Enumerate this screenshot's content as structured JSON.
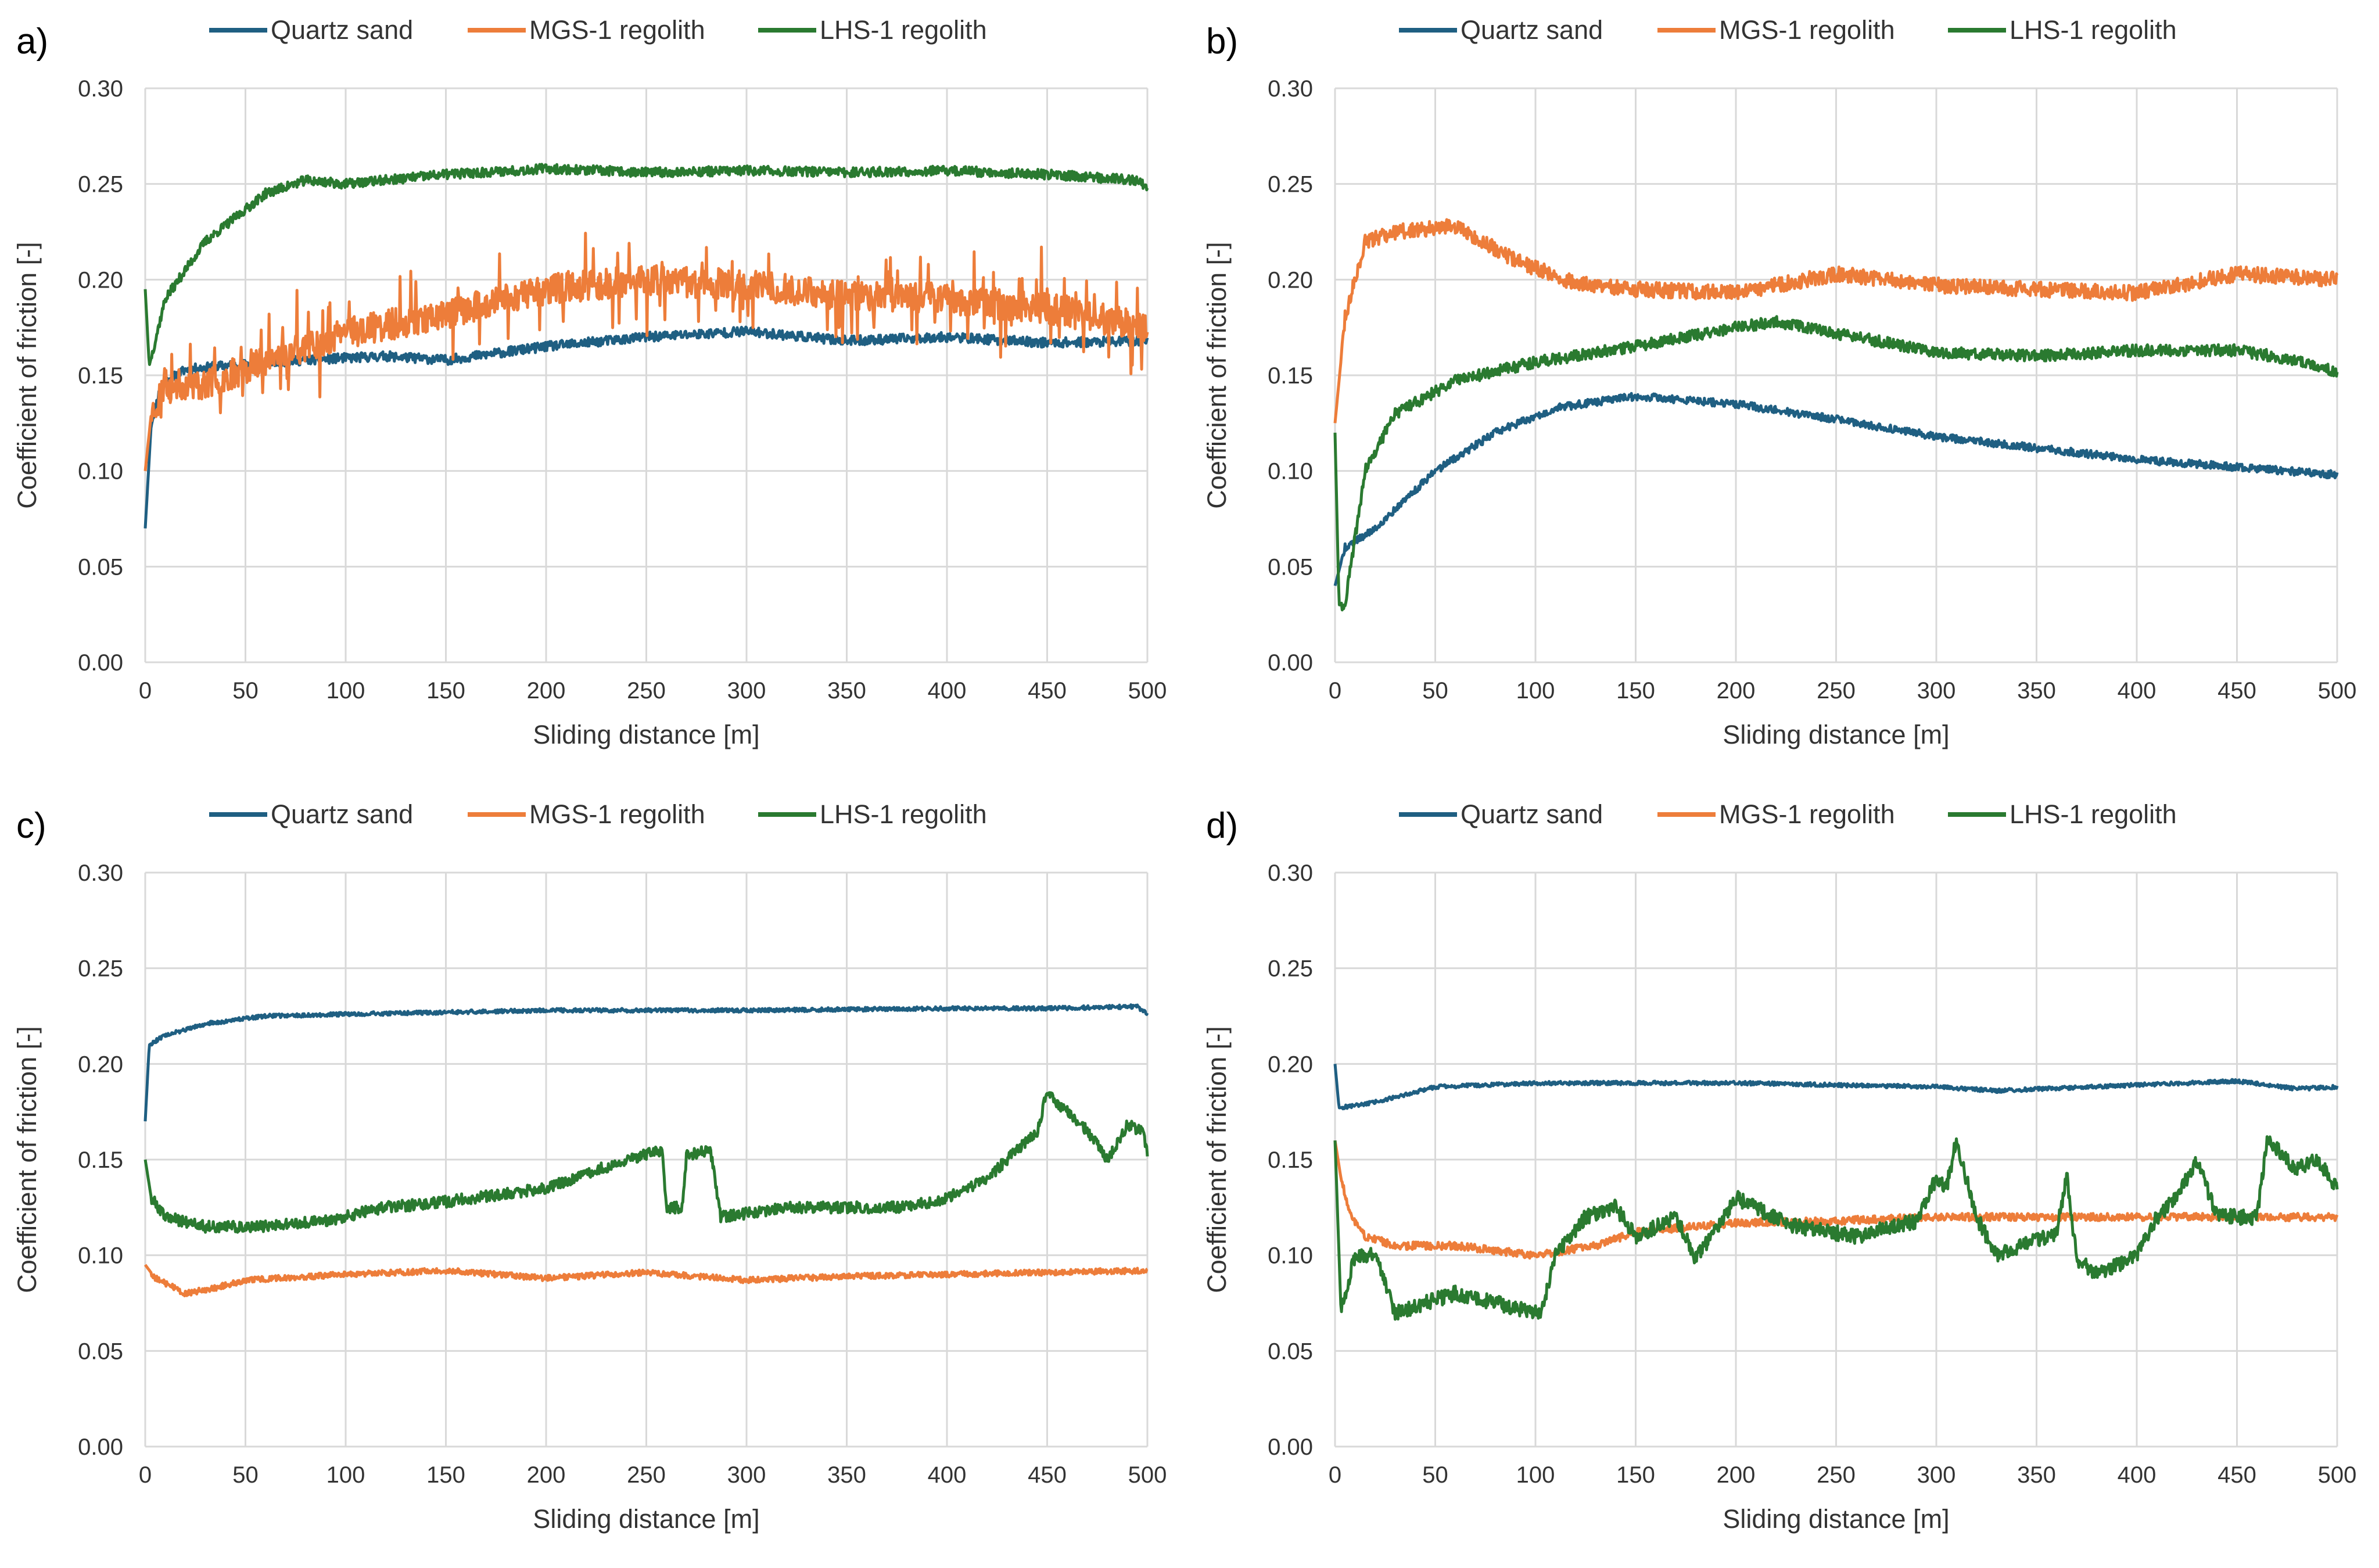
{
  "colors": {
    "quartz": "#1f5f82",
    "mgs": "#ed7d3a",
    "lhs": "#2a7a30",
    "grid": "#d9d9d9"
  },
  "chart_data": [
    {
      "id": "a",
      "panel_label": "a)",
      "type": "line",
      "xlabel": "Sliding distance [m]",
      "ylabel": "Coefficient of friction [-]",
      "xlim": [
        0,
        500
      ],
      "ylim": [
        0,
        0.3
      ],
      "xticks": [
        "0",
        "50",
        "100",
        "150",
        "200",
        "250",
        "300",
        "350",
        "400",
        "450",
        "500"
      ],
      "yticks": [
        "0.00",
        "0.05",
        "0.10",
        "0.15",
        "0.20",
        "0.25",
        "0.30"
      ],
      "legend": [
        "Quartz sand",
        "MGS-1 regolith",
        "LHS-1 regolith"
      ],
      "series": [
        {
          "name": "Quartz sand",
          "color": "#1f5f82",
          "noise": 0.0025,
          "spikes": 0,
          "seed": 11,
          "points": [
            [
              0,
              0.07
            ],
            [
              3,
              0.125
            ],
            [
              8,
              0.145
            ],
            [
              20,
              0.153
            ],
            [
              40,
              0.155
            ],
            [
              80,
              0.158
            ],
            [
              120,
              0.16
            ],
            [
              150,
              0.158
            ],
            [
              200,
              0.165
            ],
            [
              250,
              0.17
            ],
            [
              300,
              0.173
            ],
            [
              350,
              0.168
            ],
            [
              400,
              0.17
            ],
            [
              450,
              0.167
            ],
            [
              500,
              0.168
            ]
          ]
        },
        {
          "name": "MGS-1 regolith",
          "color": "#ed7d3a",
          "noise": 0.008,
          "spikes": 0.025,
          "seed": 23,
          "points": [
            [
              0,
              0.1
            ],
            [
              3,
              0.13
            ],
            [
              10,
              0.145
            ],
            [
              30,
              0.145
            ],
            [
              60,
              0.158
            ],
            [
              100,
              0.172
            ],
            [
              150,
              0.182
            ],
            [
              200,
              0.195
            ],
            [
              250,
              0.2
            ],
            [
              300,
              0.197
            ],
            [
              350,
              0.192
            ],
            [
              400,
              0.19
            ],
            [
              450,
              0.185
            ],
            [
              500,
              0.175
            ]
          ]
        },
        {
          "name": "LHS-1 regolith",
          "color": "#2a7a30",
          "noise": 0.0025,
          "spikes": 0,
          "seed": 37,
          "points": [
            [
              0,
              0.195
            ],
            [
              2,
              0.155
            ],
            [
              10,
              0.19
            ],
            [
              30,
              0.22
            ],
            [
              60,
              0.245
            ],
            [
              80,
              0.252
            ],
            [
              100,
              0.25
            ],
            [
              150,
              0.255
            ],
            [
              200,
              0.258
            ],
            [
              250,
              0.256
            ],
            [
              300,
              0.257
            ],
            [
              350,
              0.256
            ],
            [
              400,
              0.257
            ],
            [
              450,
              0.255
            ],
            [
              495,
              0.252
            ],
            [
              500,
              0.248
            ]
          ]
        }
      ]
    },
    {
      "id": "b",
      "panel_label": "b)",
      "type": "line",
      "xlabel": "Sliding distance [m]",
      "ylabel": "Coefficient of friction [-]",
      "xlim": [
        0,
        500
      ],
      "ylim": [
        0,
        0.3
      ],
      "xticks": [
        "0",
        "50",
        "100",
        "150",
        "200",
        "250",
        "300",
        "350",
        "400",
        "450",
        "500"
      ],
      "yticks": [
        "0.00",
        "0.05",
        "0.10",
        "0.15",
        "0.20",
        "0.25",
        "0.30"
      ],
      "legend": [
        "Quartz sand",
        "MGS-1 regolith",
        "LHS-1 regolith"
      ],
      "series": [
        {
          "name": "Quartz sand",
          "color": "#1f5f82",
          "noise": 0.002,
          "spikes": 0,
          "seed": 41,
          "points": [
            [
              0,
              0.04
            ],
            [
              5,
              0.06
            ],
            [
              20,
              0.07
            ],
            [
              50,
              0.1
            ],
            [
              80,
              0.12
            ],
            [
              110,
              0.133
            ],
            [
              150,
              0.139
            ],
            [
              200,
              0.135
            ],
            [
              250,
              0.127
            ],
            [
              300,
              0.118
            ],
            [
              350,
              0.112
            ],
            [
              400,
              0.106
            ],
            [
              450,
              0.102
            ],
            [
              500,
              0.098
            ]
          ]
        },
        {
          "name": "MGS-1 regolith",
          "color": "#ed7d3a",
          "noise": 0.004,
          "spikes": 0,
          "seed": 53,
          "points": [
            [
              0,
              0.125
            ],
            [
              5,
              0.18
            ],
            [
              15,
              0.22
            ],
            [
              30,
              0.225
            ],
            [
              60,
              0.228
            ],
            [
              90,
              0.21
            ],
            [
              120,
              0.198
            ],
            [
              150,
              0.195
            ],
            [
              200,
              0.193
            ],
            [
              250,
              0.203
            ],
            [
              300,
              0.197
            ],
            [
              350,
              0.195
            ],
            [
              400,
              0.193
            ],
            [
              450,
              0.203
            ],
            [
              500,
              0.2
            ]
          ]
        },
        {
          "name": "LHS-1 regolith",
          "color": "#2a7a30",
          "noise": 0.003,
          "spikes": 0,
          "seed": 67,
          "points": [
            [
              0,
              0.12
            ],
            [
              2,
              0.03
            ],
            [
              5,
              0.03
            ],
            [
              15,
              0.1
            ],
            [
              30,
              0.13
            ],
            [
              60,
              0.147
            ],
            [
              100,
              0.157
            ],
            [
              150,
              0.165
            ],
            [
              200,
              0.175
            ],
            [
              220,
              0.178
            ],
            [
              250,
              0.172
            ],
            [
              300,
              0.162
            ],
            [
              350,
              0.16
            ],
            [
              400,
              0.163
            ],
            [
              450,
              0.163
            ],
            [
              480,
              0.158
            ],
            [
              500,
              0.152
            ]
          ]
        }
      ]
    },
    {
      "id": "c",
      "panel_label": "c)",
      "type": "line",
      "xlabel": "Sliding distance [m]",
      "ylabel": "Coefficient of friction [-]",
      "xlim": [
        0,
        500
      ],
      "ylim": [
        0,
        0.3
      ],
      "xticks": [
        "0",
        "50",
        "100",
        "150",
        "200",
        "250",
        "300",
        "350",
        "400",
        "450",
        "500"
      ],
      "yticks": [
        "0.00",
        "0.05",
        "0.10",
        "0.15",
        "0.20",
        "0.25",
        "0.30"
      ],
      "legend": [
        "Quartz sand",
        "MGS-1 regolith",
        "LHS-1 regolith"
      ],
      "series": [
        {
          "name": "Quartz sand",
          "color": "#1f5f82",
          "noise": 0.001,
          "spikes": 0,
          "seed": 71,
          "points": [
            [
              0,
              0.17
            ],
            [
              2,
              0.21
            ],
            [
              10,
              0.215
            ],
            [
              30,
              0.221
            ],
            [
              60,
              0.225
            ],
            [
              100,
              0.226
            ],
            [
              150,
              0.227
            ],
            [
              200,
              0.228
            ],
            [
              300,
              0.228
            ],
            [
              400,
              0.229
            ],
            [
              450,
              0.229
            ],
            [
              495,
              0.23
            ],
            [
              500,
              0.226
            ]
          ]
        },
        {
          "name": "MGS-1 regolith",
          "color": "#ed7d3a",
          "noise": 0.0015,
          "spikes": 0,
          "seed": 83,
          "points": [
            [
              0,
              0.095
            ],
            [
              5,
              0.088
            ],
            [
              20,
              0.08
            ],
            [
              35,
              0.083
            ],
            [
              50,
              0.087
            ],
            [
              100,
              0.09
            ],
            [
              150,
              0.092
            ],
            [
              200,
              0.088
            ],
            [
              250,
              0.091
            ],
            [
              300,
              0.087
            ],
            [
              350,
              0.089
            ],
            [
              400,
              0.09
            ],
            [
              450,
              0.091
            ],
            [
              500,
              0.092
            ]
          ]
        },
        {
          "name": "LHS-1 regolith",
          "color": "#2a7a30",
          "noise": 0.003,
          "spikes": 0,
          "seed": 97,
          "points": [
            [
              0,
              0.15
            ],
            [
              3,
              0.13
            ],
            [
              10,
              0.12
            ],
            [
              30,
              0.115
            ],
            [
              60,
              0.115
            ],
            [
              90,
              0.118
            ],
            [
              120,
              0.125
            ],
            [
              150,
              0.128
            ],
            [
              200,
              0.135
            ],
            [
              240,
              0.15
            ],
            [
              258,
              0.155
            ],
            [
              260,
              0.125
            ],
            [
              268,
              0.125
            ],
            [
              270,
              0.152
            ],
            [
              282,
              0.155
            ],
            [
              287,
              0.12
            ],
            [
              320,
              0.125
            ],
            [
              380,
              0.125
            ],
            [
              400,
              0.13
            ],
            [
              420,
              0.14
            ],
            [
              445,
              0.165
            ],
            [
              450,
              0.185
            ],
            [
              470,
              0.165
            ],
            [
              480,
              0.15
            ],
            [
              490,
              0.168
            ],
            [
              498,
              0.165
            ],
            [
              500,
              0.152
            ]
          ]
        }
      ]
    },
    {
      "id": "d",
      "panel_label": "d)",
      "type": "line",
      "xlabel": "Sliding distance [m]",
      "ylabel": "Coefficient of friction [-]",
      "xlim": [
        0,
        500
      ],
      "ylim": [
        0,
        0.3
      ],
      "xticks": [
        "0",
        "50",
        "100",
        "150",
        "200",
        "250",
        "300",
        "350",
        "400",
        "450",
        "500"
      ],
      "yticks": [
        "0.00",
        "0.05",
        "0.10",
        "0.15",
        "0.20",
        "0.25",
        "0.30"
      ],
      "legend": [
        "Quartz sand",
        "MGS-1 regolith",
        "LHS-1 regolith"
      ],
      "series": [
        {
          "name": "Quartz sand",
          "color": "#1f5f82",
          "noise": 0.001,
          "spikes": 0,
          "seed": 101,
          "points": [
            [
              0,
              0.2
            ],
            [
              2,
              0.177
            ],
            [
              20,
              0.18
            ],
            [
              50,
              0.188
            ],
            [
              100,
              0.19
            ],
            [
              150,
              0.19
            ],
            [
              200,
              0.19
            ],
            [
              250,
              0.189
            ],
            [
              300,
              0.188
            ],
            [
              330,
              0.186
            ],
            [
              400,
              0.189
            ],
            [
              450,
              0.191
            ],
            [
              480,
              0.187
            ],
            [
              500,
              0.188
            ]
          ]
        },
        {
          "name": "MGS-1 regolith",
          "color": "#ed7d3a",
          "noise": 0.002,
          "spikes": 0,
          "seed": 113,
          "points": [
            [
              0,
              0.16
            ],
            [
              3,
              0.14
            ],
            [
              8,
              0.12
            ],
            [
              15,
              0.11
            ],
            [
              30,
              0.105
            ],
            [
              60,
              0.105
            ],
            [
              100,
              0.1
            ],
            [
              130,
              0.105
            ],
            [
              150,
              0.112
            ],
            [
              200,
              0.117
            ],
            [
              250,
              0.118
            ],
            [
              300,
              0.12
            ],
            [
              350,
              0.12
            ],
            [
              400,
              0.12
            ],
            [
              450,
              0.12
            ],
            [
              500,
              0.12
            ]
          ]
        },
        {
          "name": "LHS-1 regolith",
          "color": "#2a7a30",
          "noise": 0.004,
          "spikes": 0,
          "seed": 127,
          "points": [
            [
              0,
              0.16
            ],
            [
              3,
              0.07
            ],
            [
              10,
              0.1
            ],
            [
              20,
              0.1
            ],
            [
              30,
              0.07
            ],
            [
              60,
              0.08
            ],
            [
              100,
              0.07
            ],
            [
              103,
              0.07
            ],
            [
              110,
              0.1
            ],
            [
              125,
              0.12
            ],
            [
              140,
              0.125
            ],
            [
              150,
              0.11
            ],
            [
              170,
              0.12
            ],
            [
              180,
              0.098
            ],
            [
              200,
              0.13
            ],
            [
              230,
              0.115
            ],
            [
              260,
              0.11
            ],
            [
              290,
              0.118
            ],
            [
              300,
              0.14
            ],
            [
              305,
              0.135
            ],
            [
              310,
              0.16
            ],
            [
              320,
              0.12
            ],
            [
              330,
              0.1
            ],
            [
              360,
              0.112
            ],
            [
              365,
              0.142
            ],
            [
              370,
              0.098
            ],
            [
              380,
              0.09
            ],
            [
              400,
              0.1
            ],
            [
              410,
              0.12
            ],
            [
              420,
              0.13
            ],
            [
              430,
              0.15
            ],
            [
              440,
              0.12
            ],
            [
              460,
              0.12
            ],
            [
              465,
              0.16
            ],
            [
              480,
              0.145
            ],
            [
              490,
              0.15
            ],
            [
              500,
              0.135
            ]
          ]
        }
      ]
    }
  ]
}
